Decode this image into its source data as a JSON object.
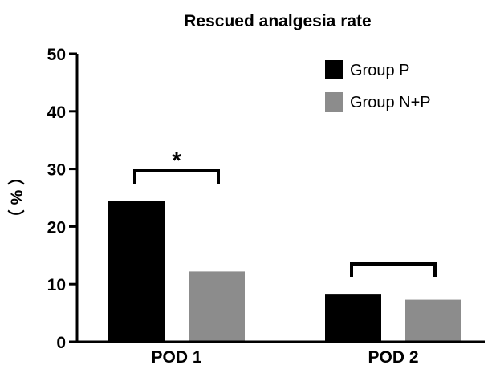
{
  "chart_data": {
    "type": "bar",
    "title": "Rescued analgesia rate",
    "ylabel": "（ % ）",
    "xlabel": "",
    "categories": [
      "POD 1",
      "POD 2"
    ],
    "series": [
      {
        "name": "Group P",
        "values": [
          24.5,
          8.2
        ],
        "color": "#000000"
      },
      {
        "name": "Group N+P",
        "values": [
          12.2,
          7.3
        ],
        "color": "#8c8c8c"
      }
    ],
    "ylim": [
      0,
      50
    ],
    "yticks": [
      "0",
      "10",
      "20",
      "30",
      "40",
      "50"
    ],
    "grid": false,
    "legend_position": "top-right",
    "annotations": [
      {
        "category": "POD 1",
        "bracket": true,
        "label": "*"
      },
      {
        "category": "POD 2",
        "bracket": true,
        "label": ""
      }
    ]
  }
}
